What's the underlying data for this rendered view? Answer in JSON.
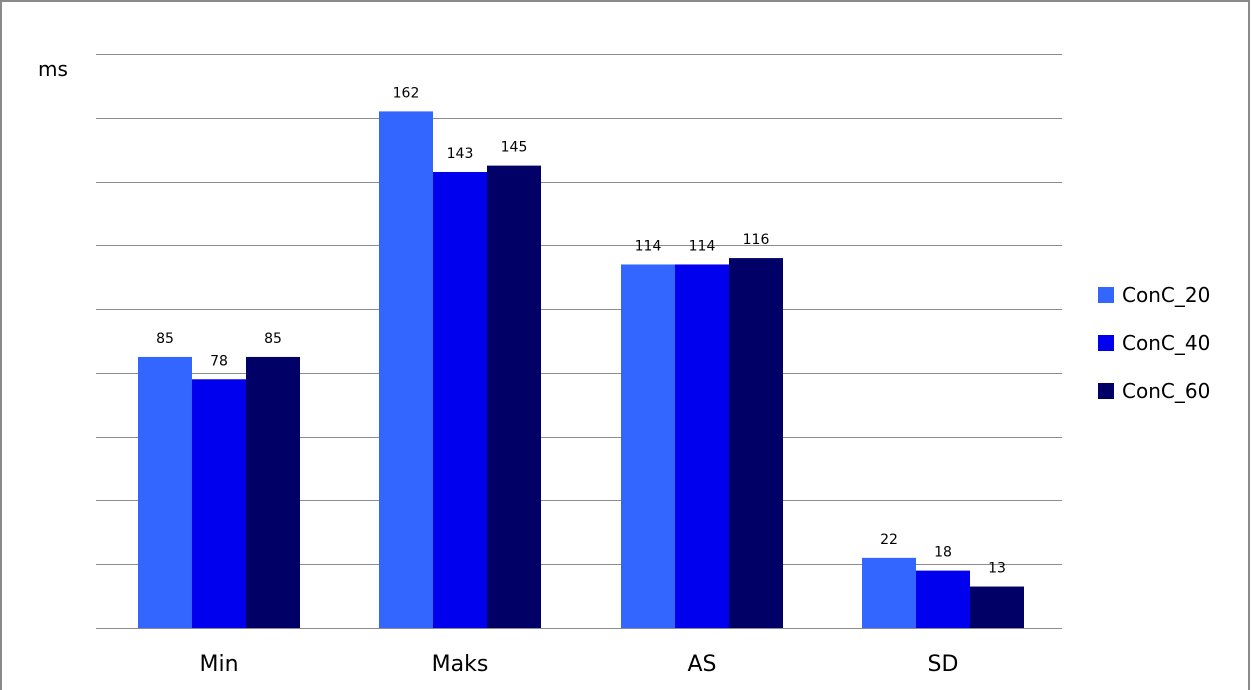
{
  "chart_data": {
    "type": "bar",
    "title": "",
    "xlabel": "",
    "ylabel": "ms",
    "categories": [
      "Min",
      "Maks",
      "AS",
      "SD"
    ],
    "series": [
      {
        "name": "ConC_20",
        "values": [
          85,
          162,
          114,
          22
        ],
        "color": "#3366ff"
      },
      {
        "name": "ConC_40",
        "values": [
          78,
          143,
          114,
          18
        ],
        "color": "#0000ee"
      },
      {
        "name": "ConC_60",
        "values": [
          85,
          145,
          116,
          13
        ],
        "color": "#000066"
      }
    ],
    "ylim": [
      0,
      180
    ],
    "y_step": 20,
    "y_tick_labels_shown": false,
    "grid": true,
    "legend_position": "right",
    "data_labels": true
  }
}
